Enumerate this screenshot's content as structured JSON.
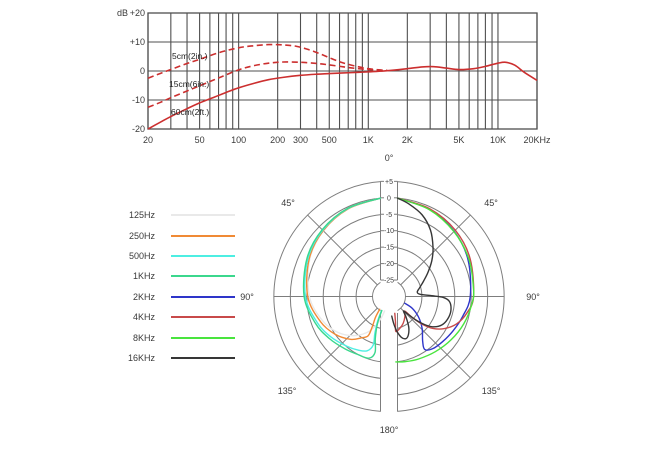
{
  "chart_data": [
    {
      "type": "line",
      "title": "",
      "ylabel": "dB",
      "xlabel": "",
      "x_scale": "log",
      "x_range": [
        20,
        20000
      ],
      "y_range": [
        -20,
        20
      ],
      "grid": true,
      "y_tick_values": [
        20,
        10,
        0,
        -10,
        -20
      ],
      "y_tick_labels": [
        "+20",
        "+10",
        "0",
        "-10",
        "-20"
      ],
      "x_tick_values": [
        20,
        50,
        100,
        200,
        300,
        500,
        1000,
        2000,
        5000,
        10000,
        20000
      ],
      "x_tick_labels": [
        "20",
        "50",
        "100",
        "200",
        "300",
        "500",
        "1K",
        "2K",
        "5K",
        "10K",
        "20KHz"
      ],
      "series": [
        {
          "name": "5cm(2in.)",
          "style": "dashed",
          "color": "#cc2f2f",
          "points": [
            [
              20,
              -2.5
            ],
            [
              25,
              -0.8
            ],
            [
              30,
              0.5
            ],
            [
              40,
              2.6
            ],
            [
              50,
              4
            ],
            [
              70,
              6.3
            ],
            [
              100,
              8
            ],
            [
              130,
              8.7
            ],
            [
              170,
              9.1
            ],
            [
              220,
              9
            ],
            [
              280,
              8.5
            ],
            [
              350,
              7.3
            ],
            [
              420,
              6
            ],
            [
              500,
              4.6
            ],
            [
              600,
              3.2
            ],
            [
              700,
              2.3
            ],
            [
              850,
              1.4
            ],
            [
              1000,
              0.8
            ],
            [
              1200,
              0.4
            ],
            [
              1400,
              0.2
            ]
          ]
        },
        {
          "name": "15cm(6in.)",
          "style": "dashed",
          "color": "#cc2f2f",
          "points": [
            [
              20,
              -12.5
            ],
            [
              25,
              -10.8
            ],
            [
              30,
              -9.2
            ],
            [
              40,
              -6.9
            ],
            [
              50,
              -5.1
            ],
            [
              70,
              -2.4
            ],
            [
              100,
              0.4
            ],
            [
              130,
              1.8
            ],
            [
              170,
              2.7
            ],
            [
              220,
              3.1
            ],
            [
              300,
              3
            ],
            [
              400,
              2.6
            ],
            [
              500,
              2.1
            ],
            [
              650,
              1.4
            ],
            [
              800,
              0.9
            ],
            [
              1000,
              0.5
            ],
            [
              1300,
              0.2
            ]
          ]
        },
        {
          "name": "60cm(2ft.)",
          "style": "solid",
          "color": "#cc2f2f",
          "points": [
            [
              20,
              -20
            ],
            [
              25,
              -17.6
            ],
            [
              30,
              -15.7
            ],
            [
              40,
              -13
            ],
            [
              50,
              -11
            ],
            [
              65,
              -9
            ],
            [
              80,
              -7.4
            ],
            [
              100,
              -5.8
            ],
            [
              130,
              -4.3
            ],
            [
              170,
              -3
            ],
            [
              220,
              -2.2
            ],
            [
              300,
              -1.5
            ],
            [
              400,
              -1.1
            ],
            [
              500,
              -0.9
            ],
            [
              700,
              -0.6
            ],
            [
              1000,
              -0.3
            ],
            [
              1400,
              0.1
            ],
            [
              2000,
              0.8
            ],
            [
              2600,
              1.4
            ],
            [
              3200,
              1.5
            ],
            [
              4000,
              1
            ],
            [
              5000,
              0.5
            ],
            [
              6500,
              0.8
            ],
            [
              8000,
              1.6
            ],
            [
              10000,
              2.7
            ],
            [
              11500,
              3
            ],
            [
              13500,
              2
            ],
            [
              16000,
              -0.5
            ],
            [
              20000,
              -3.2
            ]
          ]
        }
      ]
    },
    {
      "type": "polar",
      "db_range": [
        -25,
        5
      ],
      "radial_db_values": [
        5,
        0,
        -5,
        -10,
        -15,
        -20,
        -25
      ],
      "radial_db_labels": [
        "+5",
        "0",
        "-5",
        "-10",
        "-15",
        "-20",
        "-25"
      ],
      "angle_label_0": "0°",
      "angle_label_45": "45°",
      "angle_label_90": "90°",
      "angle_label_135": "135°",
      "angle_label_180": "180°",
      "series": [
        {
          "name": "125Hz",
          "color": "#e9e9e9",
          "side": "left",
          "points_deg_db": [
            [
              5,
              0
            ],
            [
              25,
              -0.6
            ],
            [
              45,
              -1.8
            ],
            [
              65,
              -3.4
            ],
            [
              90,
              -5.8
            ],
            [
              110,
              -8.5
            ],
            [
              125,
              -11
            ],
            [
              138,
              -14
            ],
            [
              148,
              -17
            ],
            [
              155,
              -20
            ],
            [
              160,
              -23
            ],
            [
              163,
              -25.4
            ]
          ]
        },
        {
          "name": "250Hz",
          "color": "#f08a35",
          "side": "left",
          "points_deg_db": [
            [
              5,
              0
            ],
            [
              25,
              -0.6
            ],
            [
              45,
              -1.7
            ],
            [
              65,
              -3.2
            ],
            [
              90,
              -5.3
            ],
            [
              110,
              -7.8
            ],
            [
              125,
              -10
            ],
            [
              138,
              -12.5
            ],
            [
              146,
              -14.8
            ],
            [
              152,
              -16.5
            ],
            [
              151,
              -19.5
            ],
            [
              147,
              -22.5
            ],
            [
              144,
              -25.2
            ]
          ]
        },
        {
          "name": "500Hz",
          "color": "#4deee2",
          "side": "left",
          "points_deg_db": [
            [
              5,
              0
            ],
            [
              25,
              -0.5
            ],
            [
              45,
              -1.5
            ],
            [
              65,
              -2.8
            ],
            [
              90,
              -4.6
            ],
            [
              110,
              -6.8
            ],
            [
              125,
              -8.5
            ],
            [
              140,
              -10.2
            ],
            [
              150,
              -11.2
            ],
            [
              158,
              -12.2
            ],
            [
              162,
              -14.5
            ],
            [
              159,
              -18
            ],
            [
              155,
              -22
            ],
            [
              152,
              -25.2
            ]
          ]
        },
        {
          "name": "1KHz",
          "color": "#3bd78d",
          "side": "left",
          "points_deg_db": [
            [
              5,
              0
            ],
            [
              25,
              -0.4
            ],
            [
              45,
              -1.3
            ],
            [
              65,
              -2.5
            ],
            [
              90,
              -4.2
            ],
            [
              110,
              -6.2
            ],
            [
              125,
              -7.8
            ],
            [
              140,
              -9.2
            ],
            [
              152,
              -10
            ],
            [
              162,
              -10.3
            ],
            [
              166,
              -12.5
            ],
            [
              162,
              -16.5
            ],
            [
              157,
              -21
            ],
            [
              153,
              -25.2
            ]
          ]
        },
        {
          "name": "2KHz",
          "color": "#2e35c9",
          "side": "right",
          "points_deg_db": [
            [
              5,
              0
            ],
            [
              25,
              -0.8
            ],
            [
              45,
              -2
            ],
            [
              65,
              -3.5
            ],
            [
              90,
              -5.3
            ],
            [
              105,
              -6.8
            ],
            [
              118,
              -7.9
            ],
            [
              130,
              -8.7
            ],
            [
              140,
              -9.3
            ],
            [
              146,
              -10.6
            ],
            [
              143,
              -13
            ],
            [
              134,
              -16
            ],
            [
              125,
              -19
            ],
            [
              117,
              -22
            ],
            [
              113,
              -24.8
            ]
          ]
        },
        {
          "name": "4KHz",
          "color": "#c84a4a",
          "side": "right",
          "points_deg_db": [
            [
              5,
              0
            ],
            [
              25,
              -0.6
            ],
            [
              45,
              -1.5
            ],
            [
              65,
              -2.8
            ],
            [
              90,
              -4.3
            ],
            [
              102,
              -5.8
            ],
            [
              112,
              -7.8
            ],
            [
              120,
              -10.5
            ],
            [
              126,
              -13.5
            ],
            [
              130,
              -17
            ],
            [
              132,
              -20.5
            ],
            [
              133,
              -23.5
            ],
            [
              141,
              -22.3
            ],
            [
              152,
              -20.8
            ],
            [
              162,
              -19.7
            ],
            [
              169,
              -19.2
            ],
            [
              166,
              -21.8
            ],
            [
              161,
              -24.6
            ]
          ]
        },
        {
          "name": "8KHz",
          "color": "#49e43e",
          "side": "right",
          "points_deg_db": [
            [
              5,
              0
            ],
            [
              25,
              -0.9
            ],
            [
              45,
              -2.1
            ],
            [
              65,
              -3.2
            ],
            [
              85,
              -4.2
            ],
            [
              95,
              -4.7
            ],
            [
              110,
              -5.8
            ],
            [
              125,
              -7
            ],
            [
              140,
              -8.1
            ],
            [
              155,
              -9
            ],
            [
              166,
              -9.6
            ],
            [
              174,
              -10
            ]
          ]
        },
        {
          "name": "16KHz",
          "color": "#363636",
          "side": "right",
          "points_deg_db": [
            [
              5,
              0
            ],
            [
              12,
              -1.2
            ],
            [
              22,
              -3.2
            ],
            [
              32,
              -6.2
            ],
            [
              42,
              -10
            ],
            [
              50,
              -13
            ],
            [
              58,
              -16
            ],
            [
              66,
              -18.5
            ],
            [
              74,
              -20.3
            ],
            [
              81,
              -21.3
            ],
            [
              86,
              -20.5
            ],
            [
              89,
              -17
            ],
            [
              91,
              -13.5
            ],
            [
              95,
              -11.5
            ],
            [
              103,
              -10.7
            ],
            [
              111,
              -10.9
            ],
            [
              118,
              -11.7
            ],
            [
              124,
              -13.5
            ],
            [
              128,
              -16
            ],
            [
              131,
              -19
            ],
            [
              133,
              -22
            ],
            [
              135,
              -23.8
            ],
            [
              140,
              -22
            ],
            [
              147,
              -19
            ],
            [
              153,
              -17
            ],
            [
              158,
              -16.2
            ],
            [
              163,
              -17
            ],
            [
              167,
              -19
            ],
            [
              170,
              -21.5
            ],
            [
              172,
              -24
            ]
          ]
        }
      ]
    }
  ]
}
